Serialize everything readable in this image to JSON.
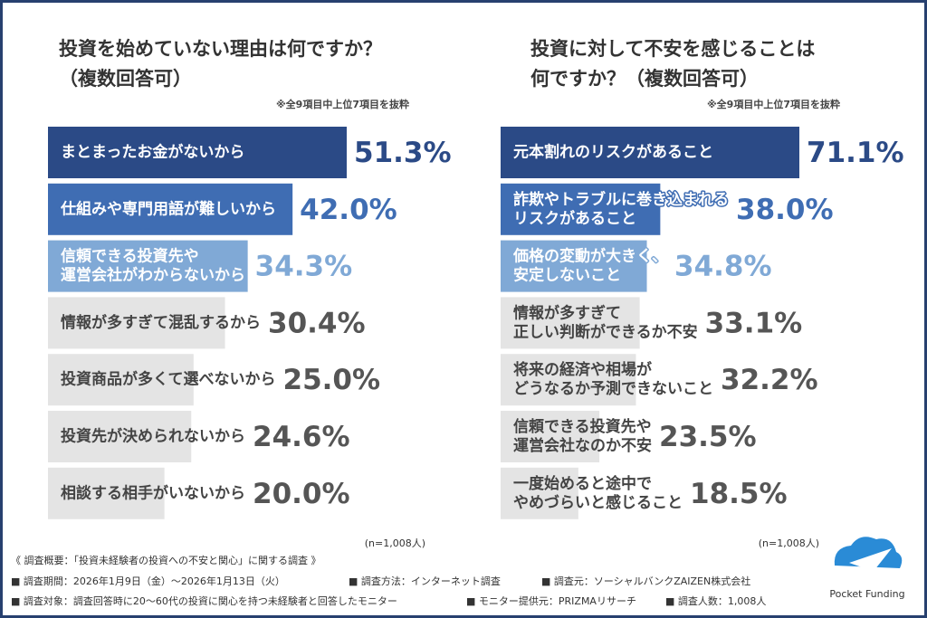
{
  "chart_data": [
    {
      "type": "hbar",
      "title": [
        "投資を始めていない理由は何ですか？",
        "（複数回答可）"
      ],
      "note": "※全9項目中上位7項目を抜粋",
      "categories": [
        "まとまったお金がないから",
        "仕組みや専門用語が難しいから",
        [
          "信頼できる投資先や",
          "運営会社がわからないから"
        ],
        "情報が多すぎて混乱するから",
        "投資商品が多くて選べないから",
        "投資先が決められないから",
        "相談する相手がいないから"
      ],
      "values": [
        51.3,
        42.0,
        34.3,
        30.4,
        25.0,
        24.6,
        20.0
      ],
      "value_labels": [
        "51.3%",
        "42.0%",
        "34.3%",
        "30.4%",
        "25.0%",
        "24.6%",
        "20.0%"
      ],
      "colors": [
        "#2b4a86",
        "#3f6db3",
        "#80a9d6",
        "#e4e4e4",
        "#e4e4e4",
        "#e4e4e4",
        "#e4e4e4"
      ],
      "label_colors": [
        "#ffffff",
        "#ffffff",
        "#ffffff",
        "#444444",
        "#444444",
        "#444444",
        "#444444"
      ],
      "value_label_colors": [
        "#2b4a86",
        "#3f6db3",
        "#80a9d6",
        "#555555",
        "#555555",
        "#555555",
        "#555555"
      ],
      "sample": "(n=1,008人)"
    },
    {
      "type": "hbar",
      "title": [
        "投資に対して不安を感じることは",
        "何ですか？（複数回答可）"
      ],
      "note": "※全9項目中上位7項目を抜粋",
      "categories": [
        "元本割れのリスクがあること",
        [
          "詐欺やトラブルに巻き込まれる",
          "リスクがあること"
        ],
        [
          "価格の変動が大きく、",
          "安定しないこと"
        ],
        [
          "情報が多すぎて",
          "正しい判断ができるか不安"
        ],
        [
          "将来の経済や相場が",
          "どうなるか予測できないこと"
        ],
        [
          "信頼できる投資先や",
          "運営会社なのか不安"
        ],
        [
          "一度始めると途中で",
          "やめづらいと感じること"
        ]
      ],
      "values": [
        71.1,
        38.0,
        34.8,
        33.1,
        32.2,
        23.5,
        18.5
      ],
      "value_labels": [
        "71.1%",
        "38.0%",
        "34.8%",
        "33.1%",
        "32.2%",
        "23.5%",
        "18.5%"
      ],
      "colors": [
        "#2b4a86",
        "#3f6db3",
        "#80a9d6",
        "#e4e4e4",
        "#e4e4e4",
        "#e4e4e4",
        "#e4e4e4"
      ],
      "label_colors": [
        "#ffffff",
        "#ffffff",
        "#ffffff",
        "#444444",
        "#444444",
        "#444444",
        "#444444"
      ],
      "value_label_colors": [
        "#2b4a86",
        "#3f6db3",
        "#80a9d6",
        "#555555",
        "#555555",
        "#555555",
        "#555555"
      ],
      "sample": "(n=1,008人)"
    }
  ],
  "footer": {
    "heading": "《 調査概要：「投資未経験者の投資への不安と関心」に関する調査 》",
    "lines": [
      [
        "■ 調査期間：2026年1月9日（金）〜2026年1月13日（火）",
        "■ 調査方法：インターネット調査",
        "■ 調査元：ソーシャルバンクZAIZEN株式会社"
      ],
      [
        "■ 調査対象：調査回答時に20〜60代の投資に関心を持つ未経験者と回答したモニター",
        "■ モニター提供元：PRIZMAリサーチ",
        "■ 調査人数：1,008人"
      ]
    ]
  },
  "logo": "Pocket Funding"
}
